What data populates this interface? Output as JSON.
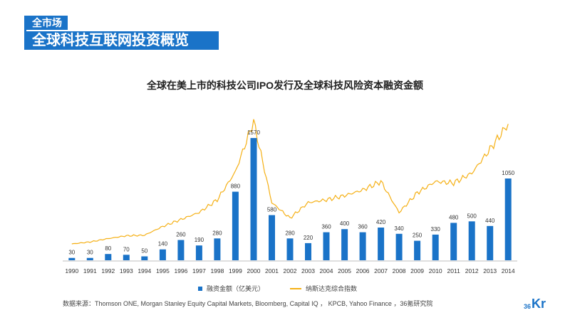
{
  "header": {
    "tag": "全市场",
    "title": "全球科技互联网投资概览"
  },
  "chart_data": {
    "type": "bar",
    "title": "全球在美上市的科技公司IPO发行及全球科技风险资本融资金额",
    "categories": [
      "1990",
      "1991",
      "1992",
      "1993",
      "1994",
      "1995",
      "1996",
      "1997",
      "1998",
      "1999",
      "2000",
      "2001",
      "2002",
      "2003",
      "2004",
      "2005",
      "2006",
      "2007",
      "2008",
      "2009",
      "2010",
      "2011",
      "2012",
      "2013",
      "2014"
    ],
    "series": [
      {
        "name": "融资金额（亿美元）",
        "type": "bar",
        "color": "#1a73c8",
        "values": [
          30,
          30,
          80,
          70,
          50,
          140,
          260,
          190,
          280,
          880,
          1570,
          580,
          280,
          220,
          360,
          400,
          360,
          420,
          340,
          250,
          330,
          480,
          500,
          440,
          1050
        ]
      },
      {
        "name": "纳斯达克综合指数",
        "type": "line",
        "color": "#f5b015",
        "values": [
          430,
          500,
          620,
          720,
          740,
          1050,
          1300,
          1550,
          2000,
          3000,
          4800,
          1900,
          1350,
          1900,
          2000,
          2150,
          2350,
          2650,
          1550,
          2250,
          2650,
          2600,
          2950,
          3800,
          4700
        ]
      }
    ],
    "legend_position": "bottom",
    "grid": false
  },
  "legend": {
    "bar_label": "融资金额（亿美元）",
    "line_label": "纳斯达克综合指数"
  },
  "source": "数据来源：Thomson ONE, Morgan Stanley Equity Capital Markets, Bloomberg, Capital IQ ， KPCB, Yahoo Finance ，36氪研究院",
  "logo": {
    "sup": "36",
    "main": "Kr"
  }
}
